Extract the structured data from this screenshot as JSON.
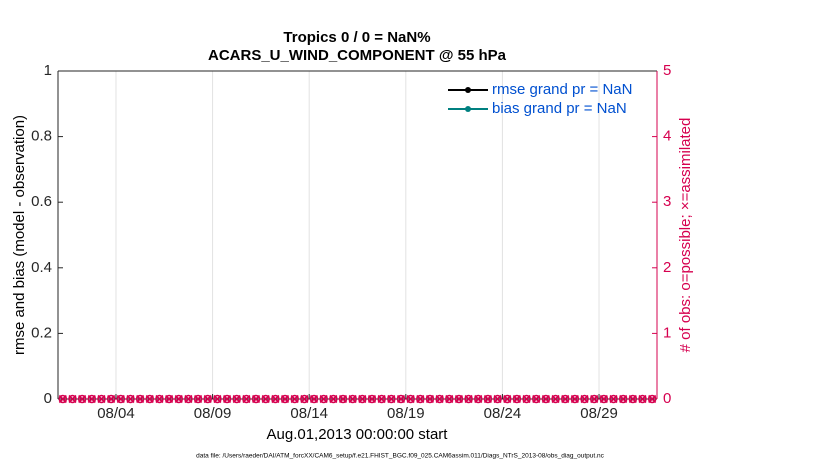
{
  "chart_data": {
    "type": "scatter",
    "title": "Tropics 0 / 0 = NaN%",
    "subtitle": "ACARS_U_WIND_COMPONENT @ 55 hPa",
    "xlabel": "Aug.01,2013 00:00:00 start",
    "ylabel": "rmse and bias (model - observation)",
    "y2label": "# of obs: o=possible; ×=assimilated",
    "footnote": "data file: /Users/raeder/DAI/ATM_forcXX/CAM6_setup/f.e21.FHIST_BGC.f09_025.CAM6assim.011/Diags_NTrS_2013-08/obs_diag_output.nc",
    "xlim": [
      1,
      32
    ],
    "xticks": [
      {
        "value": 4,
        "label": "08/04"
      },
      {
        "value": 9,
        "label": "08/09"
      },
      {
        "value": 14,
        "label": "08/14"
      },
      {
        "value": 19,
        "label": "08/19"
      },
      {
        "value": 24,
        "label": "08/24"
      },
      {
        "value": 29,
        "label": "08/29"
      }
    ],
    "ylim": [
      0,
      1
    ],
    "yticks": [
      0,
      0.2,
      0.4,
      0.6,
      0.8,
      1
    ],
    "y2lim": [
      0,
      5
    ],
    "y2ticks": [
      0,
      1,
      2,
      3,
      4,
      5
    ],
    "y2color": "#d6004f",
    "grid": "x",
    "legend_corner": "upper right",
    "legend": [
      {
        "label": "rmse grand pr = NaN",
        "color": "#000000"
      },
      {
        "label": "bias grand pr = NaN",
        "color": "#008080"
      }
    ],
    "x": [
      1.25,
      1.75,
      2.25,
      2.75,
      3.25,
      3.75,
      4.25,
      4.75,
      5.25,
      5.75,
      6.25,
      6.75,
      7.25,
      7.75,
      8.25,
      8.75,
      9.25,
      9.75,
      10.25,
      10.75,
      11.25,
      11.75,
      12.25,
      12.75,
      13.25,
      13.75,
      14.25,
      14.75,
      15.25,
      15.75,
      16.25,
      16.75,
      17.25,
      17.75,
      18.25,
      18.75,
      19.25,
      19.75,
      20.25,
      20.75,
      21.25,
      21.75,
      22.25,
      22.75,
      23.25,
      23.75,
      24.25,
      24.75,
      25.25,
      25.75,
      26.25,
      26.75,
      27.25,
      27.75,
      28.25,
      28.75,
      29.25,
      29.75,
      30.25,
      30.75,
      31.25,
      31.75
    ],
    "series": [
      {
        "marker": "o",
        "color": "#d6004f",
        "axis": "y2",
        "values": [
          0,
          0,
          0,
          0,
          0,
          0,
          0,
          0,
          0,
          0,
          0,
          0,
          0,
          0,
          0,
          0,
          0,
          0,
          0,
          0,
          0,
          0,
          0,
          0,
          0,
          0,
          0,
          0,
          0,
          0,
          0,
          0,
          0,
          0,
          0,
          0,
          0,
          0,
          0,
          0,
          0,
          0,
          0,
          0,
          0,
          0,
          0,
          0,
          0,
          0,
          0,
          0,
          0,
          0,
          0,
          0,
          0,
          0,
          0,
          0,
          0,
          0
        ]
      },
      {
        "marker": "x",
        "color": "#d6004f",
        "axis": "y2",
        "values": [
          0,
          0,
          0,
          0,
          0,
          0,
          0,
          0,
          0,
          0,
          0,
          0,
          0,
          0,
          0,
          0,
          0,
          0,
          0,
          0,
          0,
          0,
          0,
          0,
          0,
          0,
          0,
          0,
          0,
          0,
          0,
          0,
          0,
          0,
          0,
          0,
          0,
          0,
          0,
          0,
          0,
          0,
          0,
          0,
          0,
          0,
          0,
          0,
          0,
          0,
          0,
          0,
          0,
          0,
          0,
          0,
          0,
          0,
          0,
          0,
          0,
          0
        ]
      }
    ]
  }
}
